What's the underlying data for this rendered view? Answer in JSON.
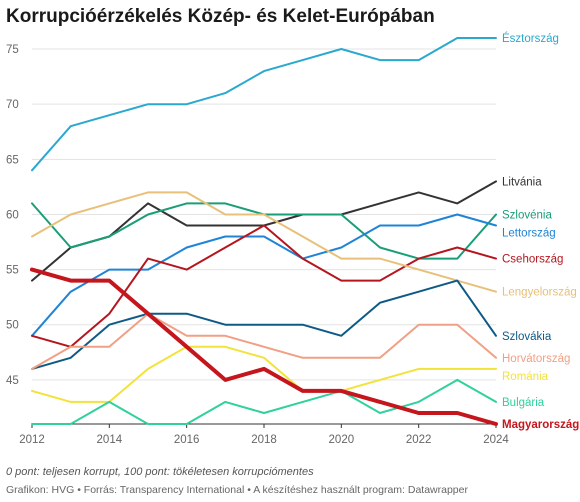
{
  "title": "Korrupcióérzékelés Közép- és Kelet-Európában",
  "note": "0 pont: teljesen korrupt, 100 pont: tökéletesen korrupciómentes",
  "credits": "Grafikon: HVG • Forrás: Transparency International • A készítéshez használt program: Datawrapper",
  "chart_data": {
    "type": "line",
    "title": "Korrupcióérzékelés Közép- és Kelet-Európában",
    "xlabel": "",
    "ylabel": "",
    "x": [
      2012,
      2013,
      2014,
      2015,
      2016,
      2017,
      2018,
      2019,
      2020,
      2021,
      2022,
      2023,
      2024
    ],
    "xlim": [
      2012,
      2024
    ],
    "ylim": [
      41,
      76
    ],
    "x_ticks": [
      "2012",
      "2014",
      "2016",
      "2018",
      "2020",
      "2022",
      "2024"
    ],
    "y_ticks": [
      "75",
      "70",
      "65",
      "60",
      "55",
      "50",
      "45"
    ],
    "grid": true,
    "legend": "direct labels at line ends (right)",
    "series": [
      {
        "name": "Észtország",
        "color": "#2aa8d0",
        "values": [
          64,
          68,
          69,
          70,
          70,
          71,
          73,
          74,
          75,
          74,
          74,
          76,
          76
        ]
      },
      {
        "name": "Litvánia",
        "color": "#333333",
        "values": [
          54,
          57,
          58,
          61,
          59,
          59,
          59,
          60,
          60,
          61,
          62,
          61,
          63
        ]
      },
      {
        "name": "Szlovénia",
        "color": "#1a9e77",
        "values": [
          61,
          57,
          58,
          60,
          61,
          61,
          60,
          60,
          60,
          57,
          56,
          56,
          60
        ]
      },
      {
        "name": "Lettország",
        "color": "#1f84d6",
        "values": [
          49,
          53,
          55,
          55,
          57,
          58,
          58,
          56,
          57,
          59,
          59,
          60,
          59
        ]
      },
      {
        "name": "Csehország",
        "color": "#b5161e",
        "values": [
          49,
          48,
          51,
          56,
          55,
          57,
          59,
          56,
          54,
          54,
          56,
          57,
          56
        ]
      },
      {
        "name": "Lengyelország",
        "color": "#e8c07a",
        "values": [
          58,
          60,
          61,
          62,
          62,
          60,
          60,
          58,
          56,
          56,
          55,
          54,
          53
        ]
      },
      {
        "name": "Szlovákia",
        "color": "#0e5a87",
        "values": [
          46,
          47,
          50,
          51,
          51,
          50,
          50,
          50,
          49,
          52,
          53,
          54,
          49
        ]
      },
      {
        "name": "Horvátország",
        "color": "#f0a084",
        "values": [
          46,
          48,
          48,
          51,
          49,
          49,
          48,
          47,
          47,
          47,
          50,
          50,
          47
        ]
      },
      {
        "name": "Románia",
        "color": "#f2e33a",
        "values": [
          44,
          43,
          43,
          46,
          48,
          48,
          47,
          44,
          44,
          45,
          46,
          46,
          46
        ]
      },
      {
        "name": "Bulgária",
        "color": "#2fd19d",
        "values": [
          41,
          41,
          43,
          41,
          41,
          43,
          42,
          43,
          44,
          42,
          43,
          45,
          43
        ]
      },
      {
        "name": "Magyarország",
        "color": "#c4161c",
        "bold": true,
        "values": [
          55,
          54,
          54,
          51,
          48,
          45,
          46,
          44,
          44,
          43,
          42,
          42,
          41
        ]
      }
    ]
  }
}
